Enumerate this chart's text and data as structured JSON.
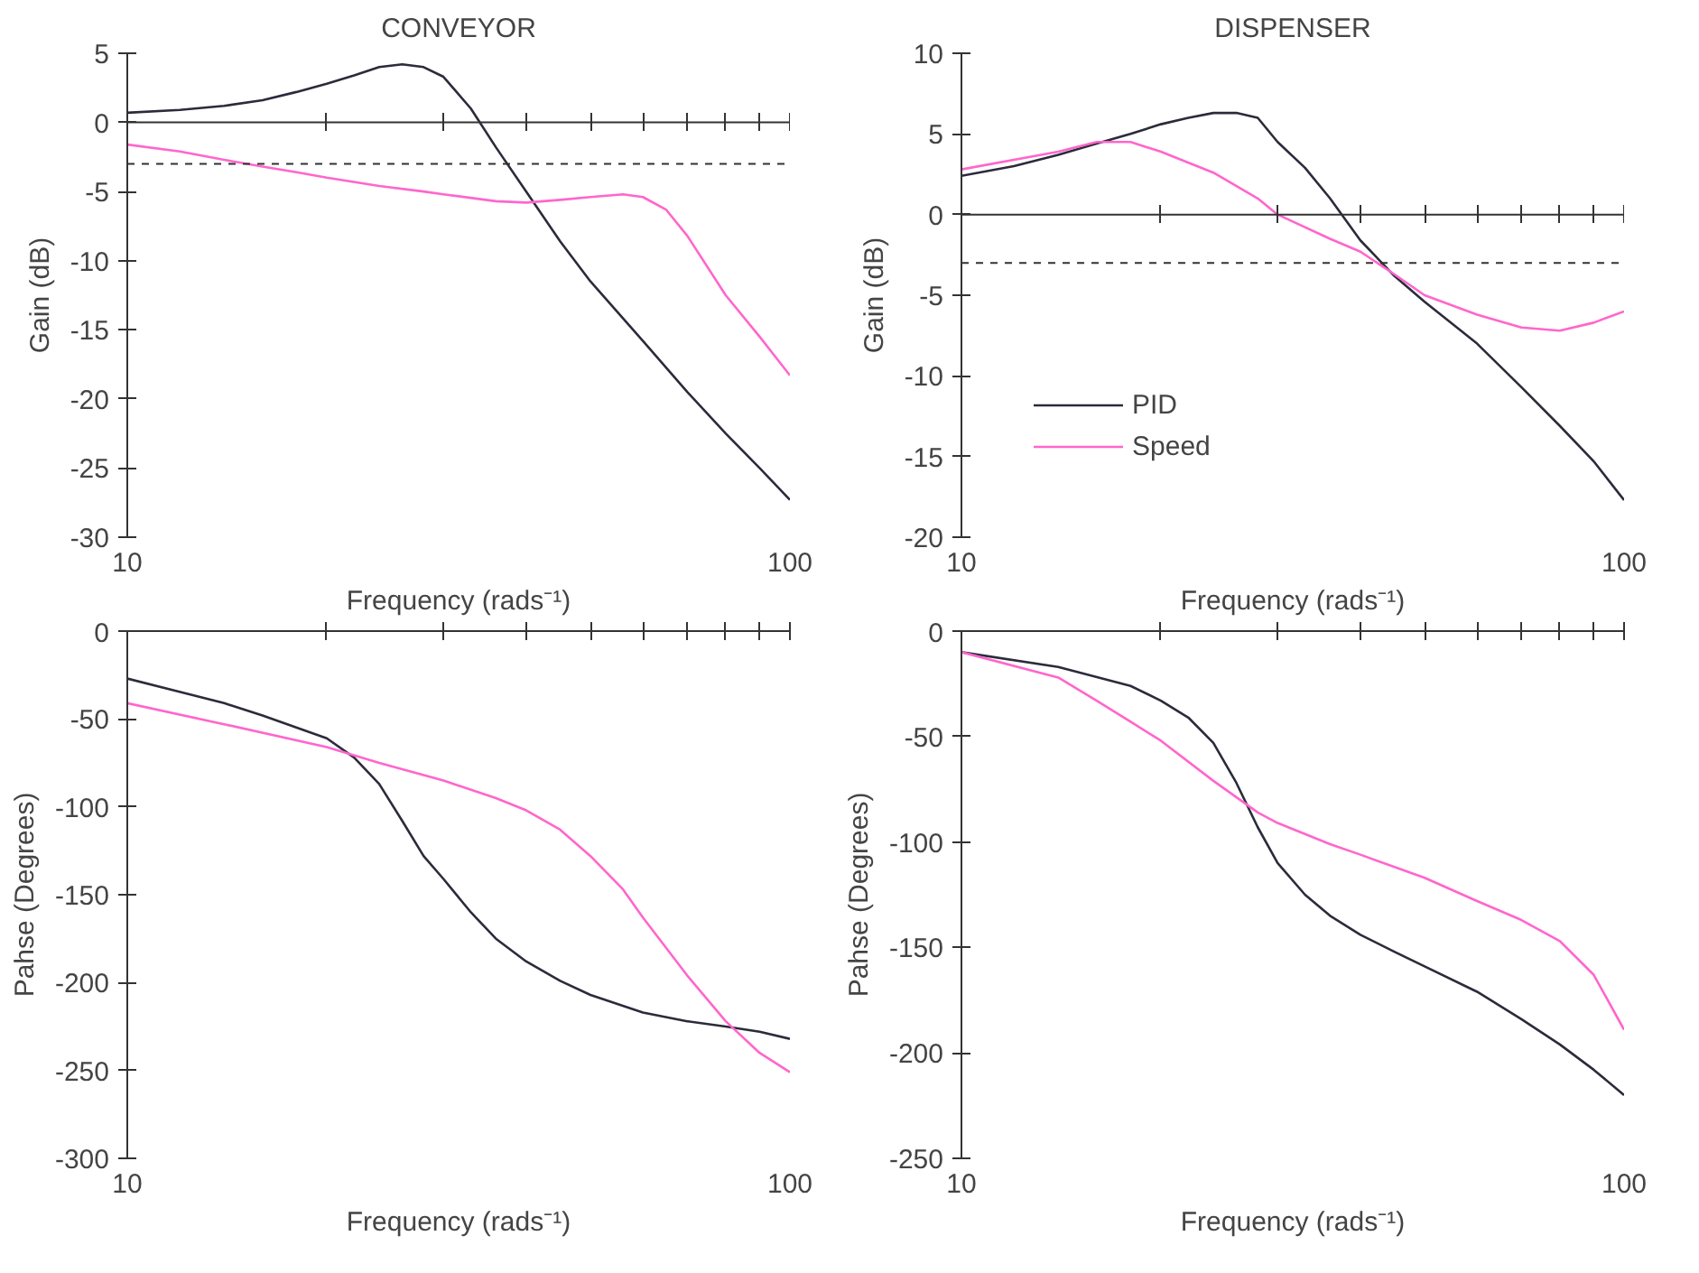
{
  "chart_data": [
    {
      "type": "line",
      "title": "CONVEYOR",
      "xlabel": "Frequency (rads⁻¹)",
      "ylabel": "Gain (dB)",
      "log": "x",
      "grid": false,
      "legend": false,
      "xlim": [
        10,
        100
      ],
      "ylim": [
        -30,
        5
      ],
      "yticks": [
        5,
        0,
        -5,
        -10,
        -15,
        -20,
        -25,
        -30
      ],
      "xticks": [
        10,
        {
          "value": 20,
          "label": null
        },
        {
          "value": 30,
          "label": null
        },
        {
          "value": 40,
          "label": null
        },
        {
          "value": 50,
          "label": null
        },
        {
          "value": 60,
          "label": null
        },
        {
          "value": 70,
          "label": null
        },
        {
          "value": 80,
          "label": null
        },
        {
          "value": 90,
          "label": null
        },
        100
      ],
      "ref_lines": [
        {
          "axis": "y",
          "value": 0,
          "label": null,
          "color": "#333333",
          "line_style": "solid"
        },
        {
          "axis": "y",
          "value": -3,
          "label": null,
          "color": "#333333",
          "line_style": "dashed"
        }
      ],
      "series": [
        {
          "color": "#2b2b3b",
          "x": [
            10,
            12,
            14,
            16,
            18,
            20,
            22,
            24,
            26,
            28,
            30,
            33,
            36,
            40,
            45,
            50,
            60,
            70,
            80,
            90,
            100
          ],
          "values": [
            0.7,
            0.9,
            1.2,
            1.6,
            2.2,
            2.8,
            3.4,
            4.0,
            4.2,
            4.0,
            3.3,
            1.0,
            -1.8,
            -5.0,
            -8.6,
            -11.5,
            -15.8,
            -19.5,
            -22.5,
            -25,
            -27.3
          ]
        },
        {
          "color": "#ff66cc",
          "x": [
            10,
            12,
            14,
            16,
            18,
            20,
            24,
            28,
            30,
            36,
            40,
            45,
            50,
            56,
            60,
            65,
            70,
            80,
            90,
            100
          ],
          "values": [
            -1.6,
            -2.1,
            -2.7,
            -3.2,
            -3.6,
            -4.0,
            -4.6,
            -5.0,
            -5.2,
            -5.7,
            -5.8,
            -5.6,
            -5.4,
            -5.2,
            -5.4,
            -6.3,
            -8.2,
            -12.5,
            -15.5,
            -18.3
          ]
        }
      ]
    },
    {
      "type": "line",
      "title": "DISPENSER",
      "xlabel": "Frequency (rads⁻¹)",
      "ylabel": "Gain (dB)",
      "log": "x",
      "grid": false,
      "legend": "bottom left",
      "xlim": [
        10,
        100
      ],
      "ylim": [
        -20,
        10
      ],
      "yticks": [
        10,
        5,
        0,
        -5,
        -10,
        -15,
        -20
      ],
      "xticks": [
        10,
        {
          "value": 20,
          "label": null
        },
        {
          "value": 30,
          "label": null
        },
        {
          "value": 40,
          "label": null
        },
        {
          "value": 50,
          "label": null
        },
        {
          "value": 60,
          "label": null
        },
        {
          "value": 70,
          "label": null
        },
        {
          "value": 80,
          "label": null
        },
        {
          "value": 90,
          "label": null
        },
        100
      ],
      "ref_lines": [
        {
          "axis": "y",
          "value": 0,
          "label": null,
          "color": "#333333",
          "line_style": "solid"
        },
        {
          "axis": "y",
          "value": -3,
          "label": null,
          "color": "#333333",
          "line_style": "dashed"
        }
      ],
      "series": [
        {
          "name": "PID",
          "color": "#2b2b3b",
          "x": [
            10,
            12,
            14,
            16,
            18,
            20,
            22,
            24,
            26,
            28,
            30,
            33,
            36,
            40,
            45,
            50,
            60,
            70,
            80,
            90,
            100
          ],
          "values": [
            2.4,
            3.0,
            3.7,
            4.4,
            5.0,
            5.6,
            6.0,
            6.3,
            6.3,
            6.0,
            4.5,
            2.9,
            1.0,
            -1.6,
            -3.8,
            -5.4,
            -8.0,
            -10.7,
            -13.1,
            -15.3,
            -17.7
          ]
        },
        {
          "name": "Speed",
          "color": "#ff66cc",
          "x": [
            10,
            14,
            16,
            18,
            20,
            24,
            28,
            30,
            36,
            40,
            45,
            50,
            60,
            70,
            80,
            90,
            100
          ],
          "values": [
            2.8,
            3.9,
            4.5,
            4.5,
            3.9,
            2.6,
            1.0,
            0,
            -1.5,
            -2.3,
            -3.7,
            -5.0,
            -6.2,
            -7.0,
            -7.2,
            -6.7,
            -6.0
          ]
        }
      ]
    },
    {
      "type": "line",
      "xlabel": "Frequency (rads⁻¹)",
      "ylabel": "Pahse (Degrees)",
      "log": "x",
      "grid": false,
      "legend": false,
      "xlim": [
        10,
        100
      ],
      "ylim": [
        -300,
        0
      ],
      "yticks": [
        0,
        -50,
        -100,
        -150,
        -200,
        -250,
        -300
      ],
      "xticks": [
        10,
        {
          "value": 20,
          "label": null
        },
        {
          "value": 30,
          "label": null
        },
        {
          "value": 40,
          "label": null
        },
        {
          "value": 50,
          "label": null
        },
        {
          "value": 60,
          "label": null
        },
        {
          "value": 70,
          "label": null
        },
        {
          "value": 80,
          "label": null
        },
        {
          "value": 90,
          "label": null
        },
        100
      ],
      "series": [
        {
          "color": "#2b2b3b",
          "x": [
            10,
            14,
            16,
            20,
            22,
            24,
            26,
            28,
            30,
            33,
            36,
            40,
            45,
            50,
            60,
            70,
            80,
            90,
            100
          ],
          "values": [
            -27,
            -41,
            -48,
            -61,
            -72,
            -87,
            -108,
            -128,
            -141,
            -160,
            -175,
            -188,
            -199,
            -207,
            -217,
            -222,
            -225,
            -228,
            -232
          ]
        },
        {
          "color": "#ff66cc",
          "x": [
            10,
            14,
            20,
            24,
            30,
            36,
            40,
            45,
            50,
            56,
            60,
            70,
            80,
            90,
            100
          ],
          "values": [
            -41,
            -53,
            -66,
            -75,
            -85,
            -95,
            -102,
            -113,
            -128,
            -147,
            -163,
            -196,
            -222,
            -240,
            -251
          ]
        }
      ]
    },
    {
      "type": "line",
      "xlabel": "Frequency (rads⁻¹)",
      "ylabel": "Pahse (Degrees)",
      "log": "x",
      "grid": false,
      "legend": false,
      "xlim": [
        10,
        100
      ],
      "ylim": [
        -250,
        0
      ],
      "yticks": [
        0,
        -50,
        -100,
        -150,
        -200,
        -250
      ],
      "xticks": [
        10,
        {
          "value": 20,
          "label": null
        },
        {
          "value": 30,
          "label": null
        },
        {
          "value": 40,
          "label": null
        },
        {
          "value": 50,
          "label": null
        },
        {
          "value": 60,
          "label": null
        },
        {
          "value": 70,
          "label": null
        },
        {
          "value": 80,
          "label": null
        },
        {
          "value": 90,
          "label": null
        },
        100
      ],
      "series": [
        {
          "color": "#2b2b3b",
          "x": [
            10,
            14,
            18,
            20,
            22,
            24,
            26,
            28,
            30,
            33,
            36,
            40,
            45,
            50,
            60,
            70,
            80,
            90,
            100
          ],
          "values": [
            -10,
            -17,
            -26,
            -33,
            -41,
            -53,
            -72,
            -93,
            -110,
            -125,
            -135,
            -144,
            -152,
            -159,
            -171,
            -184,
            -196,
            -208,
            -220
          ]
        },
        {
          "color": "#ff66cc",
          "x": [
            10,
            14,
            16,
            18,
            20,
            24,
            28,
            30,
            36,
            40,
            50,
            60,
            70,
            80,
            90,
            100
          ],
          "values": [
            -10,
            -22,
            -33,
            -43,
            -52,
            -71,
            -86,
            -91,
            -101,
            -106,
            -117,
            -128,
            -137,
            -147,
            -163,
            -189
          ]
        }
      ]
    }
  ]
}
